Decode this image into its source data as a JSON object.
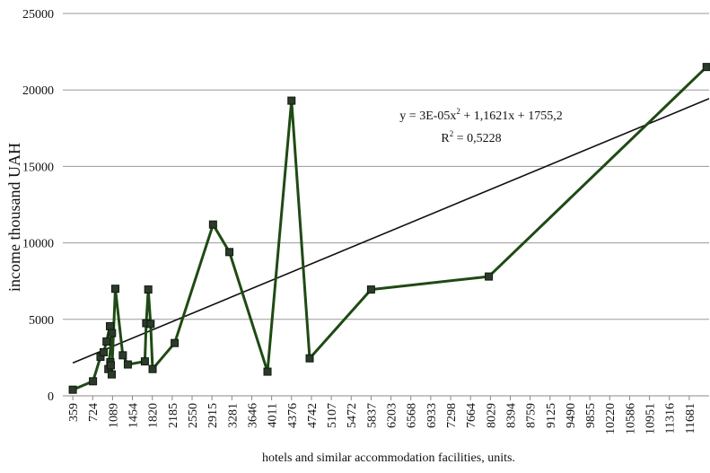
{
  "chart_data": {
    "type": "line",
    "xlabel": "hotels and similar accommodation facilities, units.",
    "ylabel": "income thousand UAH",
    "x_ticks": [
      359,
      724,
      1089,
      1454,
      1820,
      2185,
      2550,
      2915,
      3281,
      3646,
      4011,
      4376,
      4742,
      5107,
      5472,
      5837,
      6203,
      6568,
      6933,
      7298,
      7664,
      8029,
      8394,
      8759,
      9125,
      9490,
      9855,
      10220,
      10586,
      10951,
      11316,
      11681
    ],
    "xlim": [
      176,
      12046
    ],
    "y_ticks": [
      0,
      5000,
      10000,
      15000,
      20000,
      25000
    ],
    "ylim": [
      0,
      25000
    ],
    "grid": "horizontal",
    "series": [
      {
        "color": "#1f4a14",
        "marker": "square",
        "points": [
          [
            359,
            400
          ],
          [
            730,
            950
          ],
          [
            868,
            2550
          ],
          [
            926,
            2850
          ],
          [
            979,
            3550
          ],
          [
            1042,
            4550
          ],
          [
            1079,
            4100
          ],
          [
            1012,
            1750
          ],
          [
            1048,
            2200
          ],
          [
            1058,
            2000
          ],
          [
            1074,
            1400
          ],
          [
            1140,
            7000
          ],
          [
            1278,
            2650
          ],
          [
            1370,
            2050
          ],
          [
            1683,
            2250
          ],
          [
            1707,
            4750
          ],
          [
            1745,
            6950
          ],
          [
            1788,
            4700
          ],
          [
            1825,
            1750
          ],
          [
            2230,
            3450
          ],
          [
            2935,
            11200
          ],
          [
            3235,
            9400
          ],
          [
            3935,
            1580
          ],
          [
            4376,
            19300
          ],
          [
            4710,
            2450
          ],
          [
            5837,
            6950
          ],
          [
            8000,
            7800
          ],
          [
            12000,
            21500
          ]
        ]
      }
    ],
    "trendline": {
      "type": "polynomial",
      "equation_text": "y = 3E-05x",
      "equation_sup": "2",
      "equation_rest": " + 1,1621x + 1755,2",
      "r2_label": "R",
      "r2_sup": "2",
      "r2_value": " = 0,5228",
      "color": "#111111",
      "start": [
        359,
        2150
      ],
      "end": [
        12046,
        19430
      ]
    }
  }
}
